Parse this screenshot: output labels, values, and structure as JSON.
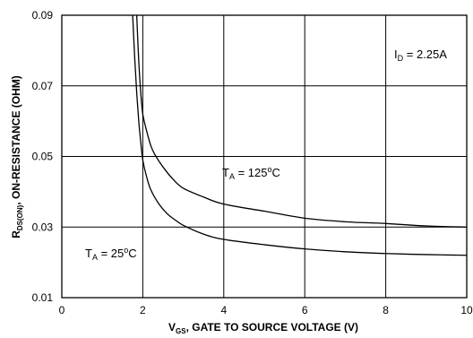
{
  "chart_data": {
    "type": "line",
    "title": "",
    "xlabel": {
      "main": "V",
      "sub": "GS",
      "rest": ", GATE TO SOURCE VOLTAGE (V)"
    },
    "ylabel": {
      "main": "R",
      "sub": "DS(ON)",
      "rest": ", ON-RESISTANCE (OHM)"
    },
    "xlim": [
      0,
      10
    ],
    "ylim": [
      0.01,
      0.09
    ],
    "x_ticks": [
      "0",
      "2",
      "4",
      "6",
      "8",
      "10"
    ],
    "x_tick_values": [
      0,
      2,
      4,
      6,
      8,
      10
    ],
    "y_ticks": [
      "0.01",
      "0.03",
      "0.05",
      "0.07",
      "0.09"
    ],
    "y_tick_values": [
      0.01,
      0.03,
      0.05,
      0.07,
      0.09
    ],
    "grid": true,
    "series": [
      {
        "name": "T_A = 125°C",
        "x": [
          1.85,
          1.9,
          1.95,
          2.0,
          2.1,
          2.2,
          2.3,
          2.5,
          2.75,
          3.0,
          3.5,
          4.0,
          5.0,
          6.0,
          7.0,
          8.0,
          9.0,
          10.0
        ],
        "y": [
          0.09,
          0.077,
          0.068,
          0.062,
          0.057,
          0.053,
          0.0505,
          0.047,
          0.0435,
          0.041,
          0.0385,
          0.0365,
          0.0345,
          0.0325,
          0.0315,
          0.031,
          0.0303,
          0.03
        ]
      },
      {
        "name": "T_A = 25°C",
        "x": [
          1.75,
          1.8,
          1.85,
          1.9,
          1.95,
          2.0,
          2.1,
          2.2,
          2.4,
          2.6,
          2.8,
          3.0,
          3.5,
          4.0,
          5.0,
          6.0,
          7.0,
          8.0,
          9.0,
          10.0
        ],
        "y": [
          0.09,
          0.078,
          0.068,
          0.06,
          0.054,
          0.049,
          0.044,
          0.0405,
          0.0365,
          0.0338,
          0.032,
          0.0305,
          0.028,
          0.0265,
          0.025,
          0.0238,
          0.023,
          0.0225,
          0.0222,
          0.022
        ]
      }
    ],
    "annotations": {
      "id": {
        "main": "I",
        "sub": "D",
        "rest": " = 2.25A"
      },
      "t125": {
        "main": "T",
        "sub": "A",
        "value": " = 125",
        "deg": "o",
        "unit": "C"
      },
      "t25": {
        "main": "T",
        "sub": "A",
        "value": " = 25",
        "deg": "o",
        "unit": "C"
      }
    }
  }
}
